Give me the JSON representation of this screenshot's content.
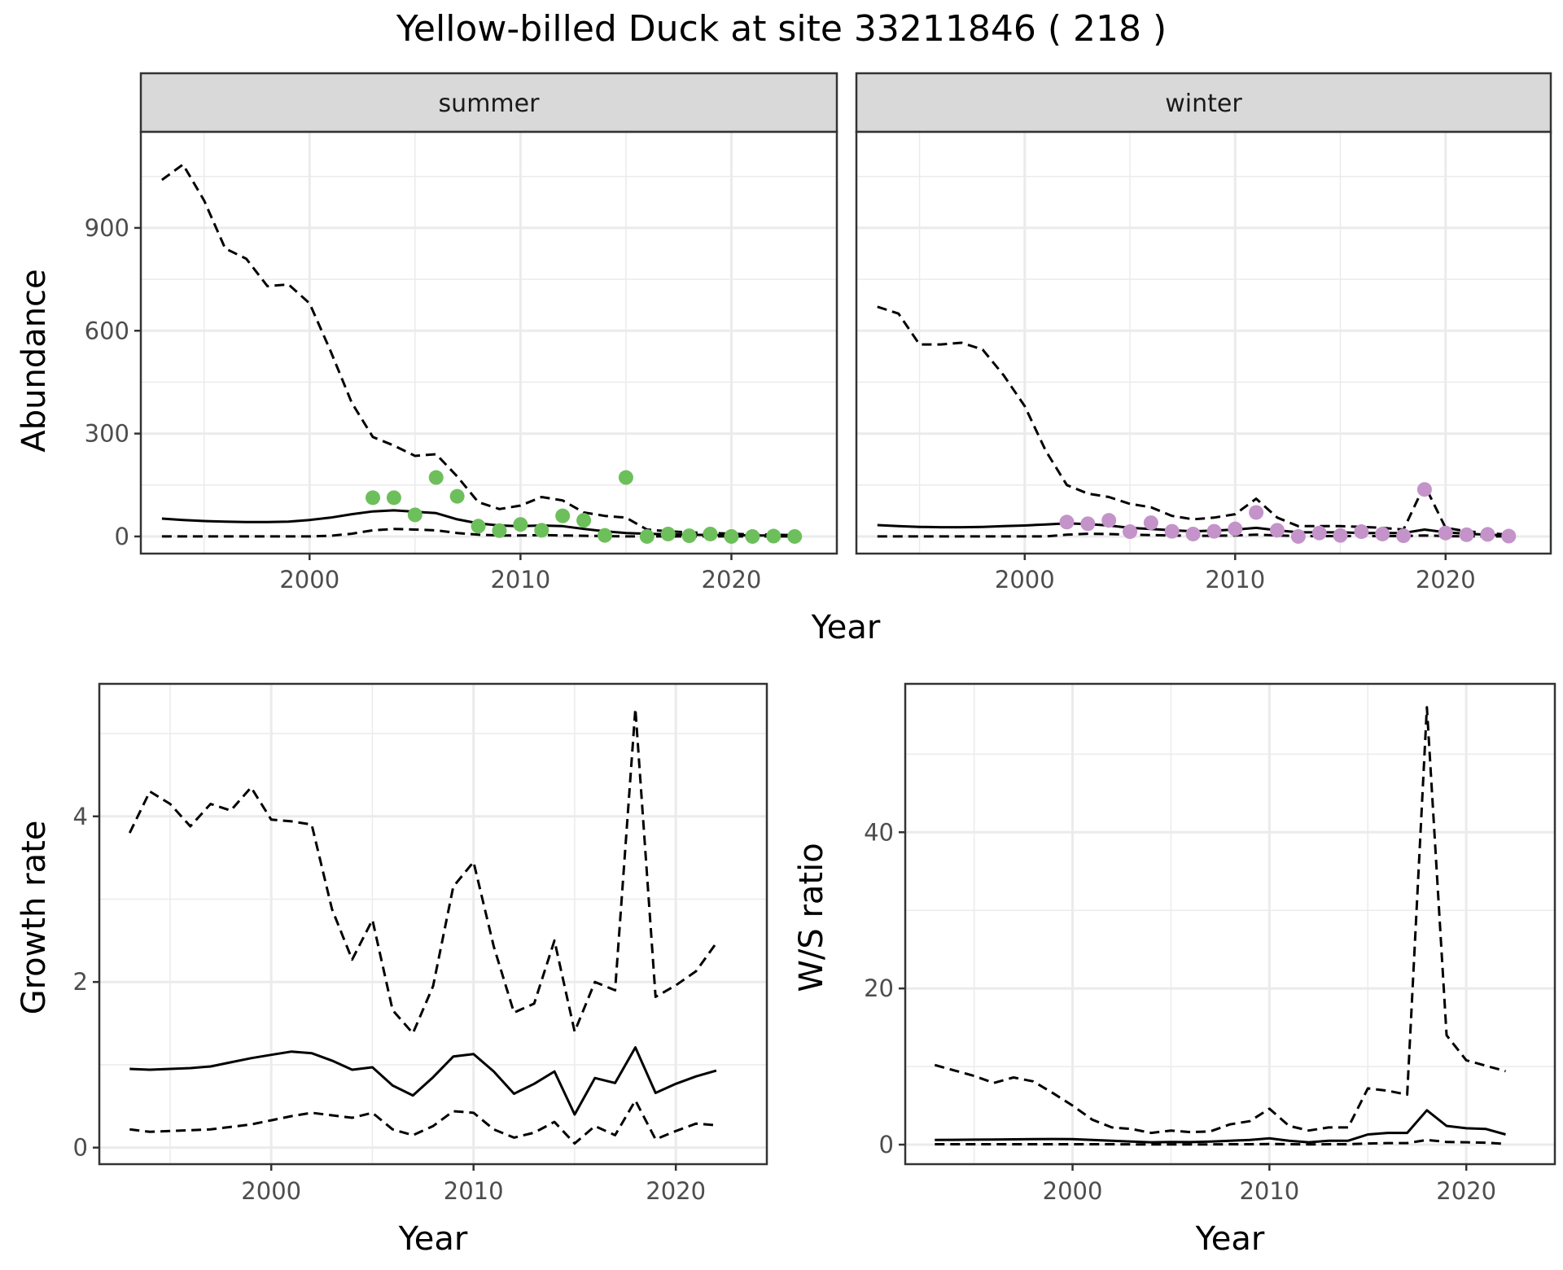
{
  "title": "Yellow-billed Duck at site 33211846 ( 218 )",
  "colors": {
    "summer_points": "#6dbf5c",
    "winter_points": "#c393c9",
    "line": "#000000",
    "grid": "#ebebeb",
    "strip_bg": "#d9d9d9"
  },
  "chart_data": [
    {
      "id": "summer",
      "type": "line",
      "strip": "summer",
      "xlabel": "Year",
      "ylabel": "Abundance",
      "xlim": [
        1992,
        2025
      ],
      "ylim": [
        -50,
        1180
      ],
      "xticks": [
        2000,
        2010,
        2020
      ],
      "xtick_labels": [
        "2000",
        "2010",
        "2020"
      ],
      "yticks": [
        0,
        300,
        600,
        900
      ],
      "ytick_labels": [
        "0",
        "300",
        "600",
        "900"
      ],
      "x": [
        1993,
        1994,
        1995,
        1996,
        1997,
        1998,
        1999,
        2000,
        2001,
        2002,
        2003,
        2004,
        2005,
        2006,
        2007,
        2008,
        2009,
        2010,
        2011,
        2012,
        2013,
        2014,
        2015,
        2016,
        2017,
        2018,
        2019,
        2020,
        2021,
        2022,
        2023
      ],
      "series": [
        {
          "name": "upper",
          "style": "dashed",
          "values": [
            1040,
            1085,
            980,
            840,
            810,
            730,
            735,
            680,
            540,
            390,
            290,
            265,
            235,
            240,
            175,
            100,
            80,
            90,
            115,
            105,
            70,
            60,
            55,
            20,
            15,
            12,
            10,
            8,
            6,
            5,
            4
          ]
        },
        {
          "name": "mean",
          "style": "solid",
          "values": [
            52,
            48,
            45,
            43,
            42,
            42,
            43,
            48,
            55,
            65,
            73,
            76,
            72,
            68,
            50,
            38,
            32,
            30,
            32,
            30,
            22,
            15,
            10,
            8,
            6,
            5,
            4,
            4,
            3,
            3,
            3
          ]
        },
        {
          "name": "lower",
          "style": "dashed",
          "values": [
            0,
            0,
            0,
            0,
            0,
            0,
            0,
            0,
            2,
            8,
            18,
            22,
            20,
            18,
            10,
            5,
            3,
            3,
            4,
            3,
            2,
            1,
            0,
            0,
            0,
            0,
            0,
            0,
            0,
            0,
            0
          ]
        }
      ],
      "points": {
        "x": [
          2003,
          2004,
          2005,
          2006,
          2007,
          2008,
          2009,
          2010,
          2011,
          2012,
          2013,
          2014,
          2015,
          2016,
          2017,
          2018,
          2019,
          2020,
          2021,
          2022,
          2023
        ],
        "values": [
          113,
          113,
          63,
          172,
          117,
          30,
          17,
          35,
          18,
          60,
          47,
          3,
          172,
          0,
          7,
          2,
          7,
          0,
          0,
          1,
          0
        ]
      }
    },
    {
      "id": "winter",
      "type": "line",
      "strip": "winter",
      "xlim": [
        1992,
        2025
      ],
      "ylim": [
        -50,
        1180
      ],
      "xticks": [
        2000,
        2010,
        2020
      ],
      "xtick_labels": [
        "2000",
        "2010",
        "2020"
      ],
      "x": [
        1993,
        1994,
        1995,
        1996,
        1997,
        1998,
        1999,
        2000,
        2001,
        2002,
        2003,
        2004,
        2005,
        2006,
        2007,
        2008,
        2009,
        2010,
        2011,
        2012,
        2013,
        2014,
        2015,
        2016,
        2017,
        2018,
        2019,
        2020,
        2021,
        2022,
        2023
      ],
      "series": [
        {
          "name": "upper",
          "style": "dashed",
          "values": [
            670,
            650,
            560,
            560,
            565,
            545,
            470,
            380,
            250,
            150,
            125,
            115,
            95,
            85,
            60,
            50,
            55,
            65,
            110,
            55,
            30,
            30,
            30,
            28,
            25,
            20,
            150,
            25,
            15,
            10,
            5
          ]
        },
        {
          "name": "mean",
          "style": "solid",
          "values": [
            33,
            30,
            28,
            27,
            27,
            28,
            30,
            32,
            35,
            38,
            36,
            32,
            25,
            22,
            18,
            15,
            17,
            20,
            25,
            18,
            12,
            12,
            12,
            10,
            10,
            10,
            20,
            12,
            8,
            5,
            3
          ]
        },
        {
          "name": "lower",
          "style": "dashed",
          "values": [
            0,
            0,
            0,
            0,
            0,
            0,
            0,
            0,
            0,
            5,
            8,
            7,
            5,
            4,
            3,
            2,
            2,
            3,
            5,
            3,
            1,
            1,
            1,
            1,
            1,
            1,
            3,
            1,
            0,
            0,
            0
          ]
        }
      ],
      "points": {
        "x": [
          2002,
          2003,
          2004,
          2005,
          2006,
          2007,
          2008,
          2009,
          2010,
          2011,
          2012,
          2013,
          2014,
          2015,
          2016,
          2017,
          2018,
          2019,
          2020,
          2021,
          2022,
          2023
        ],
        "values": [
          42,
          37,
          47,
          14,
          40,
          15,
          7,
          15,
          22,
          70,
          18,
          0,
          10,
          3,
          14,
          7,
          2,
          137,
          10,
          5,
          6,
          1
        ]
      }
    },
    {
      "id": "growth",
      "type": "line",
      "xlabel": "Year",
      "ylabel": "Growth rate",
      "xlim": [
        1991.5,
        2024.5
      ],
      "ylim": [
        -0.2,
        5.6
      ],
      "xticks": [
        2000,
        2010,
        2020
      ],
      "xtick_labels": [
        "2000",
        "2010",
        "2020"
      ],
      "yticks": [
        0,
        2,
        4
      ],
      "ytick_labels": [
        "0",
        "2",
        "4"
      ],
      "x": [
        1993,
        1994,
        1995,
        1996,
        1997,
        1998,
        1999,
        2000,
        2001,
        2002,
        2003,
        2004,
        2005,
        2006,
        2007,
        2008,
        2009,
        2010,
        2011,
        2012,
        2013,
        2014,
        2015,
        2016,
        2017,
        2018,
        2019,
        2020,
        2021,
        2022
      ],
      "series": [
        {
          "name": "upper",
          "style": "dashed",
          "values": [
            3.8,
            4.3,
            4.15,
            3.88,
            4.15,
            4.07,
            4.35,
            3.96,
            3.94,
            3.9,
            2.88,
            2.27,
            2.75,
            1.66,
            1.38,
            1.95,
            3.15,
            3.45,
            2.43,
            1.63,
            1.74,
            2.5,
            1.4,
            2.0,
            1.9,
            5.3,
            1.82,
            1.96,
            2.13,
            2.47
          ]
        },
        {
          "name": "mean",
          "style": "solid",
          "values": [
            0.95,
            0.94,
            0.95,
            0.96,
            0.98,
            1.03,
            1.08,
            1.12,
            1.16,
            1.14,
            1.05,
            0.94,
            0.97,
            0.75,
            0.63,
            0.85,
            1.1,
            1.13,
            0.92,
            0.65,
            0.77,
            0.92,
            0.4,
            0.84,
            0.78,
            1.21,
            0.66,
            0.77,
            0.86,
            0.93
          ]
        },
        {
          "name": "lower",
          "style": "dashed",
          "values": [
            0.22,
            0.19,
            0.2,
            0.21,
            0.22,
            0.25,
            0.28,
            0.33,
            0.38,
            0.42,
            0.39,
            0.36,
            0.42,
            0.22,
            0.15,
            0.26,
            0.44,
            0.42,
            0.22,
            0.12,
            0.18,
            0.31,
            0.05,
            0.26,
            0.15,
            0.57,
            0.1,
            0.2,
            0.29,
            0.27
          ]
        }
      ]
    },
    {
      "id": "ws",
      "type": "line",
      "xlabel": "Year",
      "ylabel": "W/S ratio",
      "xlim": [
        1991.5,
        2024.5
      ],
      "ylim": [
        -2.5,
        59
      ],
      "xticks": [
        2000,
        2010,
        2020
      ],
      "xtick_labels": [
        "2000",
        "2010",
        "2020"
      ],
      "yticks": [
        0,
        20,
        40
      ],
      "ytick_labels": [
        "0",
        "20",
        "40"
      ],
      "x": [
        1993,
        1994,
        1995,
        1996,
        1997,
        1998,
        1999,
        2000,
        2001,
        2002,
        2003,
        2004,
        2005,
        2006,
        2007,
        2008,
        2009,
        2010,
        2011,
        2012,
        2013,
        2014,
        2015,
        2016,
        2017,
        2018,
        2019,
        2020,
        2021,
        2022
      ],
      "series": [
        {
          "name": "upper",
          "style": "dashed",
          "values": [
            10.2,
            9.5,
            8.8,
            7.9,
            8.6,
            8.1,
            6.6,
            5.0,
            3.2,
            2.2,
            2.0,
            1.5,
            1.8,
            1.6,
            1.7,
            2.6,
            3.0,
            4.6,
            2.4,
            1.8,
            2.2,
            2.2,
            7.2,
            6.9,
            6.4,
            56,
            14,
            10.8,
            10.1,
            9.4
          ]
        },
        {
          "name": "mean",
          "style": "solid",
          "values": [
            0.6,
            0.62,
            0.64,
            0.66,
            0.68,
            0.7,
            0.72,
            0.7,
            0.6,
            0.5,
            0.4,
            0.3,
            0.35,
            0.32,
            0.4,
            0.5,
            0.6,
            0.8,
            0.5,
            0.3,
            0.5,
            0.5,
            1.3,
            1.5,
            1.5,
            4.4,
            2.4,
            2.1,
            2.0,
            1.3
          ]
        },
        {
          "name": "lower",
          "style": "dashed",
          "values": [
            0.05,
            0.05,
            0.05,
            0.05,
            0.05,
            0.05,
            0.05,
            0.05,
            0.05,
            0.05,
            0.03,
            0.03,
            0.03,
            0.03,
            0.03,
            0.05,
            0.05,
            0.08,
            0.05,
            0.03,
            0.05,
            0.05,
            0.15,
            0.2,
            0.2,
            0.6,
            0.35,
            0.3,
            0.25,
            0.1
          ]
        }
      ]
    }
  ]
}
